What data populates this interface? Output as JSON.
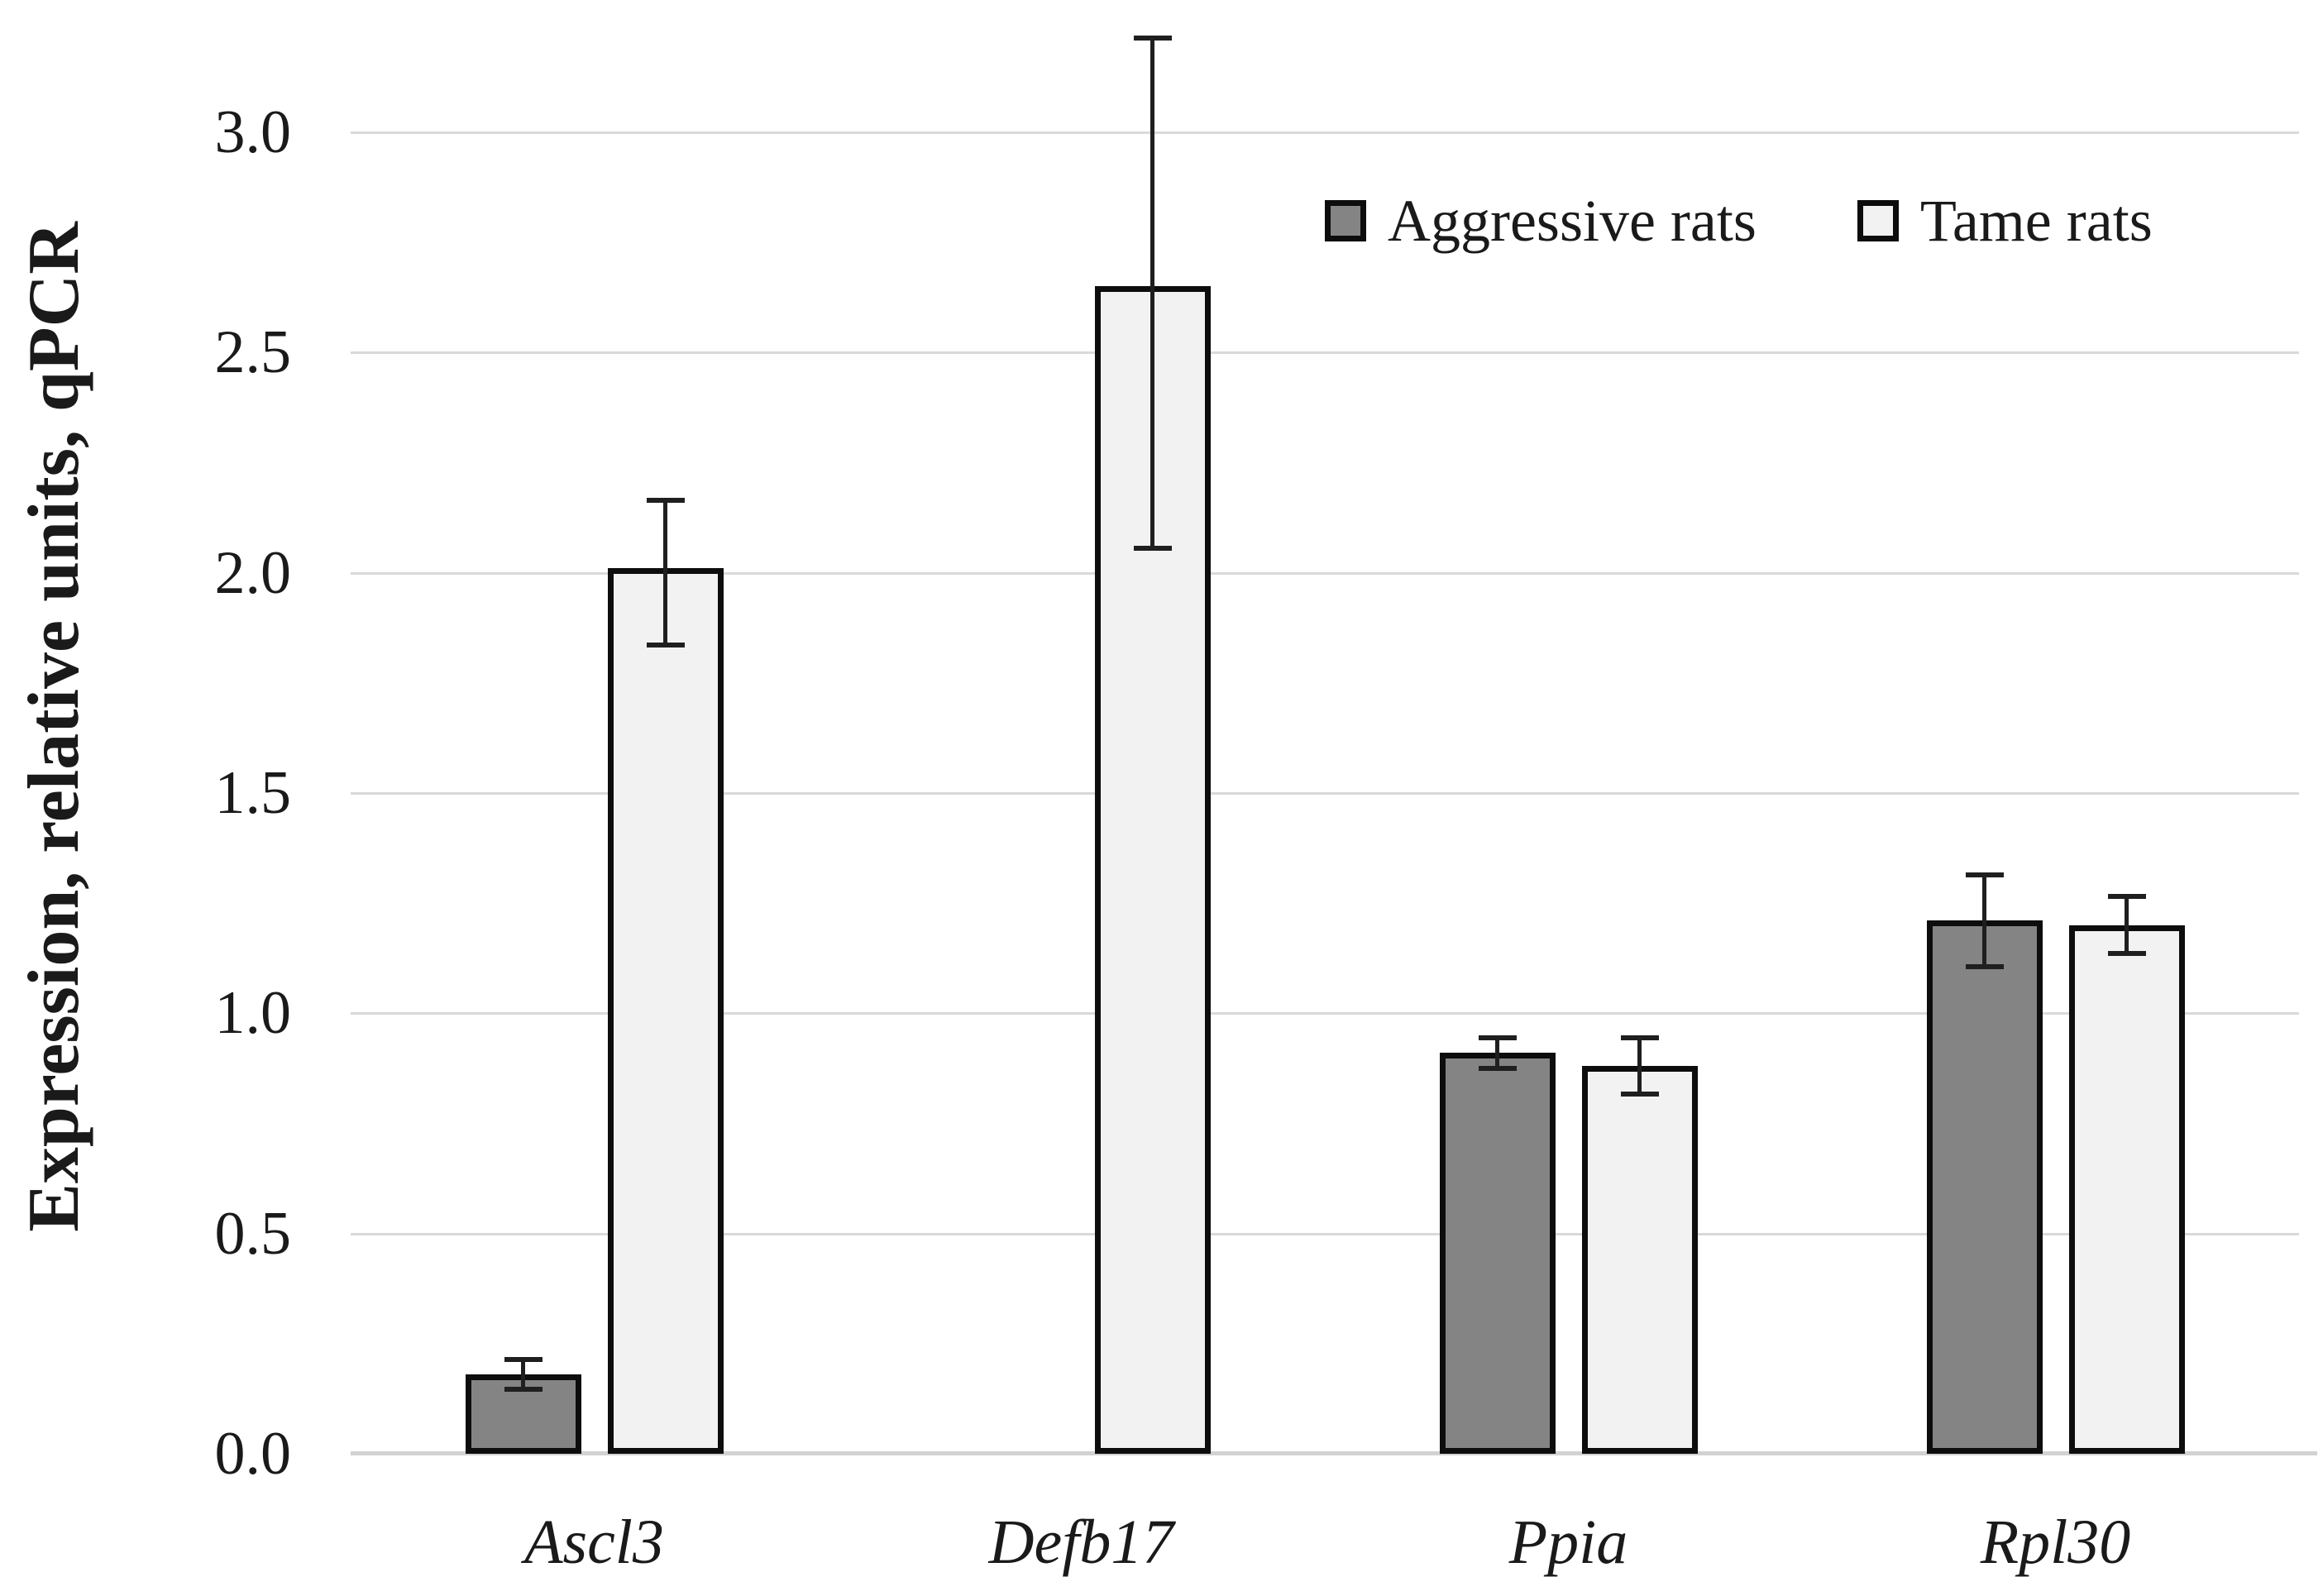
{
  "chart_data": {
    "type": "bar",
    "title": "",
    "xlabel": "",
    "ylabel": "Expression, relative units, qPCR",
    "categories": [
      "Ascl3",
      "Defb17",
      "Ppia",
      "Rpl30"
    ],
    "categories_style": "italic",
    "series": [
      {
        "name": "Aggressive rats",
        "color": "#848484",
        "values": [
          0.18,
          0,
          0.91,
          1.21
        ],
        "error_low": [
          0.14,
          null,
          0.87,
          1.1
        ],
        "error_high": [
          0.22,
          null,
          0.95,
          1.32
        ]
      },
      {
        "name": "Tame rats",
        "color": "#f2f2f2",
        "values": [
          2.01,
          2.65,
          0.88,
          1.2
        ],
        "error_low": [
          1.83,
          2.05,
          0.81,
          1.13
        ],
        "error_high": [
          2.17,
          3.22,
          0.95,
          1.27
        ]
      }
    ],
    "ylim": [
      0,
      3.3
    ],
    "yticks": [
      "0.0",
      "0.5",
      "1.0",
      "1.5",
      "2.0",
      "2.5",
      "3.0"
    ],
    "ytick_values": [
      0,
      0.5,
      1.0,
      1.5,
      2.0,
      2.5,
      3.0
    ],
    "grid": "horizontal",
    "gridline_color": "#d9d9d9",
    "axis_line_color": "#d2d2d2",
    "bar_border_color": "#0d0d0d",
    "error_bar_color": "#1f1f1f",
    "legend_position": "top-right",
    "background_color": "#ffffff"
  }
}
